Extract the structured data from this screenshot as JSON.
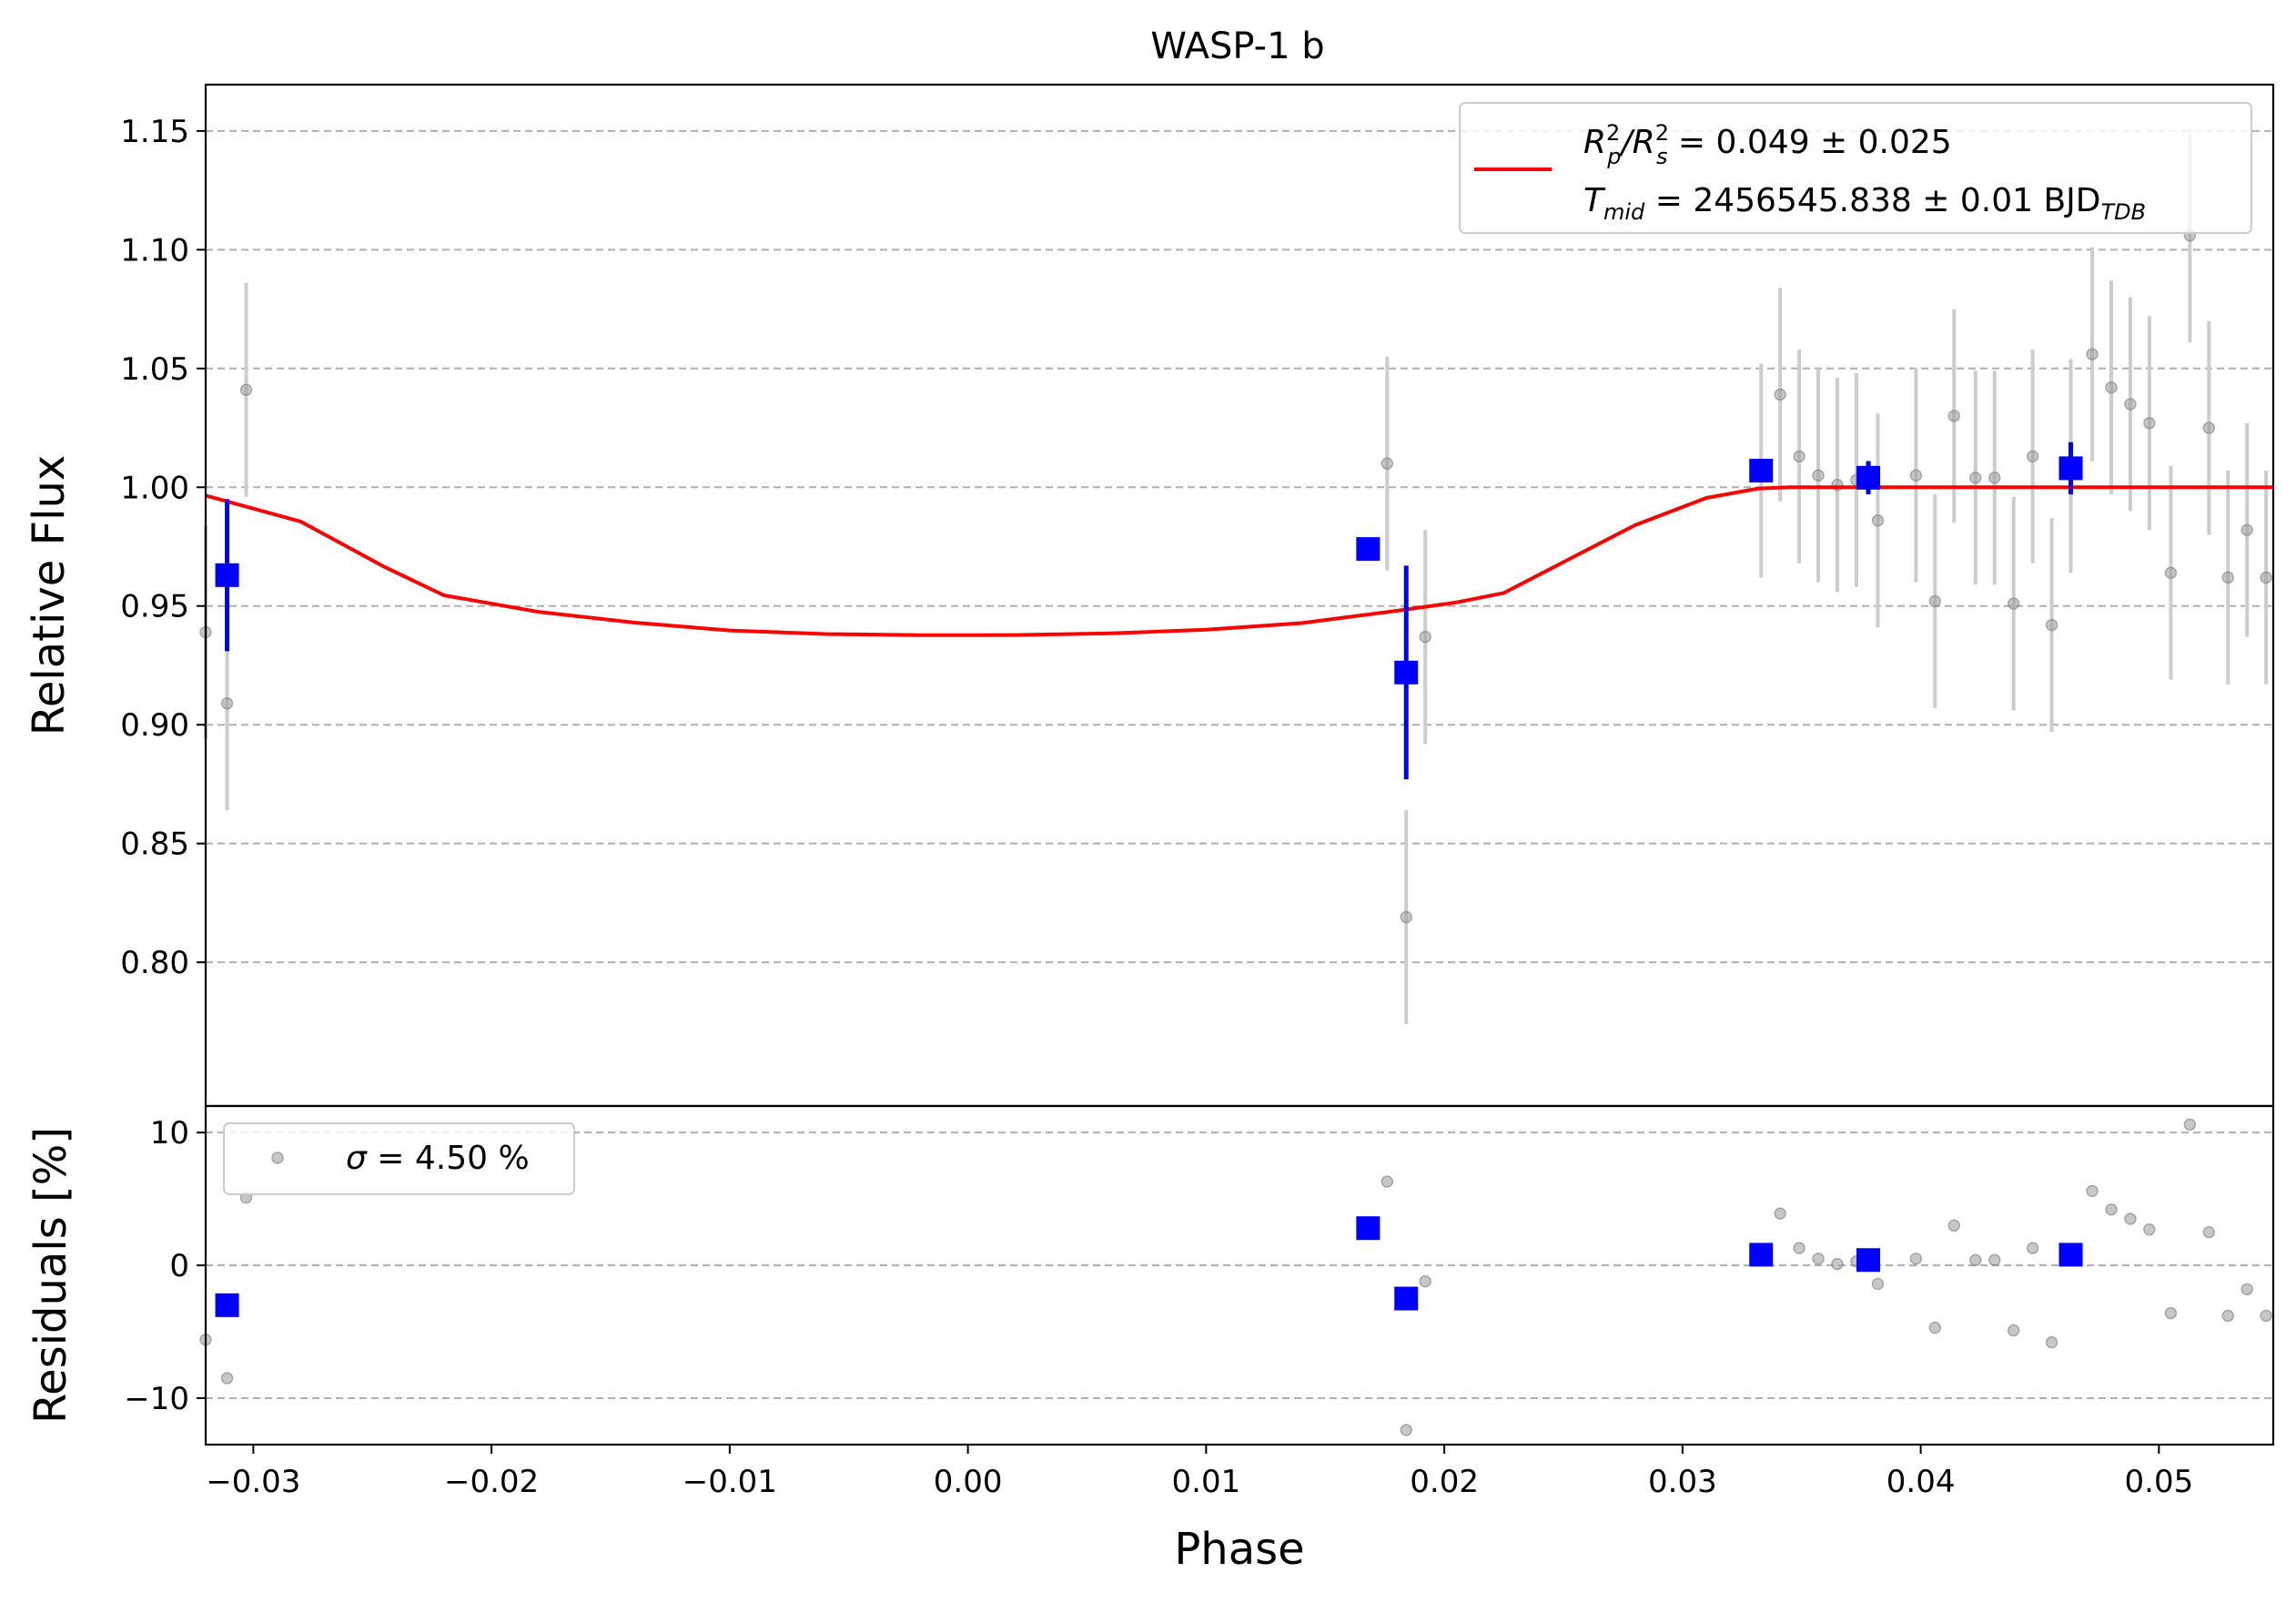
{
  "chart_data": {
    "type": "scatter",
    "title": "WASP-1 b",
    "xlabel": "Phase",
    "xlim": [
      -0.032,
      0.0548
    ],
    "x_ticks": [
      -0.03,
      -0.02,
      -0.01,
      0.0,
      0.01,
      0.02,
      0.03,
      0.04,
      0.05
    ],
    "x_tick_labels": [
      "−0.03",
      "−0.02",
      "−0.01",
      "0.00",
      "0.01",
      "0.02",
      "0.03",
      "0.04",
      "0.05"
    ],
    "grid": "horizontal dashed",
    "legend_placement": "top-right",
    "colors": {
      "model": "#ff0000",
      "binned": "#0000ff",
      "raw": "#999999",
      "grid": "#b0b0b0"
    },
    "flux_panel": {
      "ylabel": "Relative Flux",
      "ylim": [
        0.7395,
        1.1695
      ],
      "y_ticks": [
        0.8,
        0.85,
        0.9,
        0.95,
        1.0,
        1.05,
        1.1,
        1.15
      ],
      "y_tick_labels": [
        "0.80",
        "0.85",
        "0.90",
        "0.95",
        "1.00",
        "1.05",
        "1.10",
        "1.15"
      ],
      "legend": {
        "line1_a": "R",
        "line1_a_sup": "2",
        "line1_a_sub": "p",
        "line1_b": "/R",
        "line1_b_sup": "2",
        "line1_b_sub": "s",
        "line1_value": " = 0.049 ± 0.025",
        "line2_t": "T",
        "line2_t_sub": "mid",
        "line2_value": " = 2456545.838 ± 0.01 BJD",
        "line2_unit_sub": "TDB"
      },
      "model": {
        "x": [
          -0.032,
          -0.028,
          -0.0245,
          -0.022,
          -0.018,
          -0.014,
          -0.01,
          -0.006,
          -0.002,
          0.0,
          0.002,
          0.006,
          0.01,
          0.014,
          0.018,
          0.0205,
          0.0225,
          0.025,
          0.028,
          0.031,
          0.0332,
          0.0345,
          0.04,
          0.0548
        ],
        "y": [
          0.9965,
          0.9855,
          0.9665,
          0.9545,
          0.9475,
          0.943,
          0.9397,
          0.9382,
          0.9377,
          0.9377,
          0.9378,
          0.9385,
          0.94,
          0.9428,
          0.948,
          0.9515,
          0.9555,
          0.9685,
          0.984,
          0.9955,
          0.9995,
          1.0,
          1.0,
          1.0
        ]
      },
      "raw": {
        "x": [
          -0.032,
          -0.0311,
          -0.0303,
          0.0176,
          0.0184,
          0.0192,
          0.0333,
          0.0341,
          0.0349,
          0.0357,
          0.0365,
          0.0373,
          0.0382,
          0.0398,
          0.0406,
          0.0414,
          0.0423,
          0.0431,
          0.0439,
          0.0447,
          0.0455,
          0.0463,
          0.0472,
          0.048,
          0.0488,
          0.0496,
          0.0505,
          0.0513,
          0.0521,
          0.0529,
          0.0537,
          0.0545
        ],
        "y": [
          0.939,
          0.909,
          1.041,
          1.01,
          0.819,
          0.937,
          1.007,
          1.039,
          1.013,
          1.005,
          1.001,
          1.003,
          0.986,
          1.005,
          0.952,
          1.03,
          1.004,
          1.004,
          0.951,
          1.013,
          0.942,
          1.009,
          1.056,
          1.042,
          1.035,
          1.027,
          0.964,
          1.106,
          1.025,
          0.962,
          0.982,
          0.962
        ],
        "err": [
          0.045,
          0.045,
          0.045,
          0.045,
          0.045,
          0.045,
          0.045,
          0.045,
          0.045,
          0.045,
          0.045,
          0.045,
          0.045,
          0.045,
          0.045,
          0.045,
          0.045,
          0.045,
          0.045,
          0.045,
          0.045,
          0.045,
          0.045,
          0.045,
          0.045,
          0.045,
          0.045,
          0.045,
          0.045,
          0.045,
          0.045,
          0.045
        ]
      },
      "binned": {
        "x": [
          -0.0311,
          0.0168,
          0.0184,
          0.0333,
          0.0378,
          0.0463
        ],
        "y": [
          0.963,
          0.974,
          0.922,
          1.007,
          1.004,
          1.008
        ],
        "err": [
          0.032,
          0.0,
          0.045,
          0.0,
          0.007,
          0.011
        ]
      }
    },
    "residual_panel": {
      "ylabel": "Residuals [%]",
      "ylim": [
        -13.5,
        12
      ],
      "y_ticks": [
        -10,
        0,
        10
      ],
      "y_tick_labels": [
        "−10",
        "0",
        "10"
      ],
      "legend": {
        "sigma": "σ",
        "value": " = 4.50 %"
      },
      "raw": {
        "x": [
          -0.032,
          -0.0311,
          -0.0303,
          0.0176,
          0.0184,
          0.0192,
          0.0341,
          0.0349,
          0.0357,
          0.0365,
          0.0373,
          0.0382,
          0.0398,
          0.0406,
          0.0414,
          0.0423,
          0.0431,
          0.0439,
          0.0447,
          0.0455,
          0.0463,
          0.0472,
          0.048,
          0.0488,
          0.0496,
          0.0505,
          0.0513,
          0.0521,
          0.0529,
          0.0537,
          0.0545
        ],
        "y": [
          -5.6,
          -8.5,
          5.1,
          6.3,
          -12.4,
          -1.2,
          3.9,
          1.3,
          0.5,
          0.1,
          0.3,
          -1.4,
          0.5,
          -4.7,
          3.0,
          0.4,
          0.4,
          -4.9,
          1.3,
          -5.8,
          0.9,
          5.6,
          4.2,
          3.5,
          2.7,
          -3.6,
          10.6,
          2.5,
          -3.8,
          -1.8,
          -3.8
        ]
      },
      "binned": {
        "x": [
          -0.0311,
          0.0168,
          0.0184,
          0.0333,
          0.0378,
          0.0463
        ],
        "y": [
          -3.0,
          2.8,
          -2.5,
          0.8,
          0.4,
          0.8
        ]
      }
    }
  }
}
